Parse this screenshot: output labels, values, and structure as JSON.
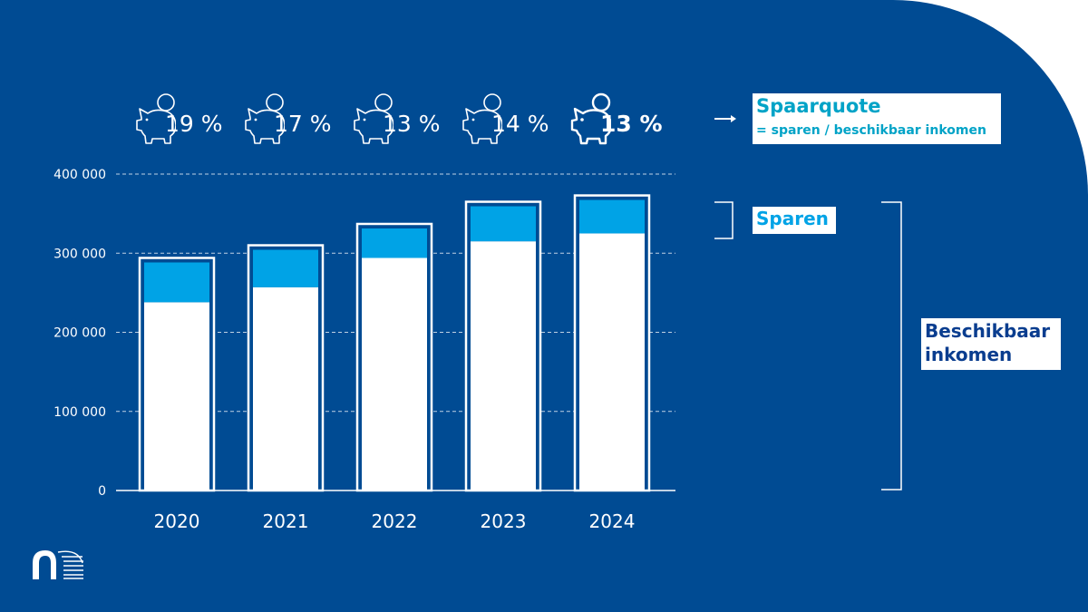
{
  "chart_data": {
    "type": "bar",
    "stacked": true,
    "categories": [
      "2020",
      "2021",
      "2022",
      "2023",
      "2024"
    ],
    "series": [
      {
        "name": "Beschikbaar inkomen",
        "values": [
          294000,
          310000,
          337000,
          365000,
          373000
        ],
        "color": "#ffffff"
      },
      {
        "name": "Sparen",
        "values": [
          56000,
          53000,
          43000,
          50000,
          48000
        ],
        "color": "#00a3e6"
      }
    ],
    "y_ticks": [
      "0",
      "100 000",
      "200 000",
      "300 000",
      "400 000"
    ],
    "y_tick_values": [
      0,
      100000,
      200000,
      300000,
      400000
    ],
    "ylim": [
      0,
      400000
    ],
    "grid": true
  },
  "savings_rates": [
    {
      "label": "19 %",
      "bold": false
    },
    {
      "label": "17 %",
      "bold": false
    },
    {
      "label": "13 %",
      "bold": false
    },
    {
      "label": "14 %",
      "bold": false
    },
    {
      "label": "13 %",
      "bold": true
    }
  ],
  "legend": {
    "spaarquote_title": "Spaarquote",
    "spaarquote_formula": "= sparen / beschikbaar inkomen",
    "sparen": "Sparen",
    "inkomen": "Beschikbaar inkomen"
  },
  "icons": {
    "savings": "piggy-bank-icon",
    "arrow": "arrow-right-icon",
    "logo": "brand-logo-icon"
  },
  "colors": {
    "background": "#004b93",
    "saving_fill": "#00a3e6",
    "income_fill": "#ffffff",
    "spaarquote_text": "#00a3c7",
    "inkomen_text": "#0a3d8f"
  }
}
